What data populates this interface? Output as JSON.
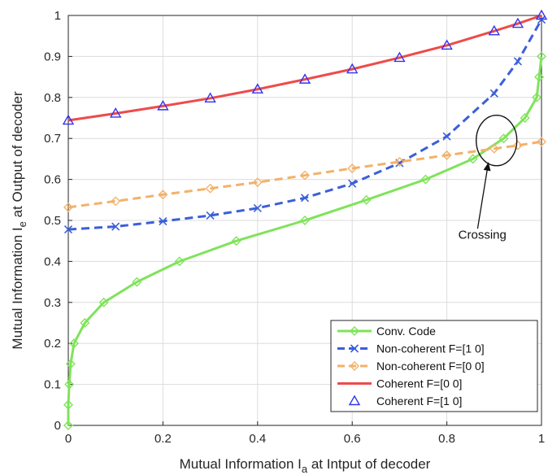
{
  "chart_data": {
    "type": "line",
    "xlabel": "Mutual Information I_a at Intput of decoder",
    "xlabel_main": "Mutual Information I",
    "xlabel_sub": "a",
    "xlabel_rest": " at Intput of decoder",
    "ylabel": "Mutual Information I_e at Output of decoder",
    "ylabel_main": "Mutual Information I",
    "ylabel_sub": "e",
    "ylabel_rest": " at Output of decoder",
    "xlim": [
      0,
      1
    ],
    "ylim": [
      0,
      1
    ],
    "xticks": [
      0,
      0.2,
      0.4,
      0.6,
      0.8,
      1
    ],
    "xtick_labels": [
      "0",
      "0.2",
      "0.4",
      "0.6",
      "0.8",
      "1"
    ],
    "yticks": [
      0,
      0.1,
      0.2,
      0.3,
      0.4,
      0.5,
      0.6,
      0.7,
      0.8,
      0.9,
      1
    ],
    "ytick_labels": [
      "0",
      "0.1",
      "0.2",
      "0.3",
      "0.4",
      "0.5",
      "0.6",
      "0.7",
      "0.8",
      "0.9",
      "1"
    ],
    "grid": true,
    "legend_position": "bottom-right",
    "series": [
      {
        "name": "Conv. Code",
        "color": "#7fe35a",
        "dash": "solid",
        "marker": "diamond",
        "x": [
          0,
          0,
          0.002,
          0.005,
          0.012,
          0.035,
          0.075,
          0.145,
          0.235,
          0.355,
          0.5,
          0.63,
          0.755,
          0.855,
          0.92,
          0.965,
          0.99,
          0.995,
          1.0
        ],
        "y": [
          0,
          0.05,
          0.1,
          0.15,
          0.2,
          0.25,
          0.3,
          0.35,
          0.4,
          0.45,
          0.5,
          0.55,
          0.6,
          0.65,
          0.7,
          0.75,
          0.8,
          0.85,
          0.9
        ]
      },
      {
        "name": "Non-coherent F=[1 0]",
        "color": "#3b5fd9",
        "dash": "dashed",
        "marker": "x",
        "x": [
          0,
          0.1,
          0.2,
          0.3,
          0.4,
          0.5,
          0.6,
          0.7,
          0.8,
          0.9,
          0.95,
          1.0
        ],
        "y": [
          0.478,
          0.485,
          0.498,
          0.512,
          0.53,
          0.555,
          0.59,
          0.64,
          0.705,
          0.81,
          0.888,
          0.99
        ]
      },
      {
        "name": "Non-coherent F=[0 0]",
        "color": "#f2b26b",
        "dash": "dashed",
        "marker": "diamond",
        "x": [
          0,
          0.1,
          0.2,
          0.3,
          0.4,
          0.5,
          0.6,
          0.7,
          0.8,
          0.9,
          0.95,
          1.0
        ],
        "y": [
          0.532,
          0.547,
          0.563,
          0.578,
          0.593,
          0.61,
          0.627,
          0.643,
          0.659,
          0.675,
          0.683,
          0.692
        ]
      },
      {
        "name": "Coherent F=[0 0]",
        "color": "#ee4b4b",
        "dash": "solid",
        "marker": "none",
        "x": [
          0,
          0.1,
          0.2,
          0.3,
          0.4,
          0.5,
          0.6,
          0.7,
          0.8,
          0.9,
          0.95,
          1.0
        ],
        "y": [
          0.744,
          0.761,
          0.779,
          0.798,
          0.82,
          0.844,
          0.869,
          0.897,
          0.927,
          0.962,
          0.98,
          1.0
        ]
      },
      {
        "name": "Coherent F=[1 0]",
        "color": "#3333ee",
        "dash": "none",
        "marker": "triangle",
        "x": [
          0,
          0.1,
          0.2,
          0.3,
          0.4,
          0.5,
          0.6,
          0.7,
          0.8,
          0.9,
          0.95,
          1.0
        ],
        "y": [
          0.744,
          0.761,
          0.779,
          0.798,
          0.82,
          0.844,
          0.869,
          0.897,
          0.927,
          0.962,
          0.98,
          1.0
        ]
      }
    ],
    "annotations": [
      {
        "text": "Crossing",
        "circle_at": [
          0.905,
          0.695
        ],
        "arrow_from": [
          0.865,
          0.48
        ],
        "label_at": [
          0.875,
          0.455
        ]
      }
    ]
  }
}
